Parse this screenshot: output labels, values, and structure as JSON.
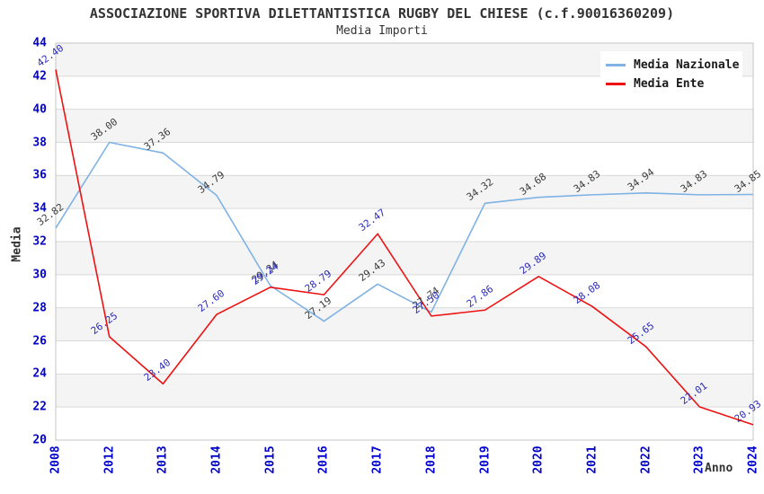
{
  "header": {
    "title": "ASSOCIAZIONE SPORTIVA DILETTANTISTICA RUGBY DEL CHIESE (c.f.90016360209)",
    "subtitle": "Media Importi"
  },
  "legend": {
    "items": [
      {
        "label": "Media Nazionale",
        "color": "#7FB2E5"
      },
      {
        "label": "Media Ente",
        "color": "#EE1111"
      }
    ]
  },
  "axes": {
    "y_title": "Media",
    "x_title": "Anno",
    "y_ticks": [
      44,
      42,
      40,
      38,
      36,
      34,
      32,
      30,
      28,
      26,
      24,
      22,
      20
    ],
    "x_ticks": [
      "2008",
      "2012",
      "2013",
      "2014",
      "2015",
      "2016",
      "2017",
      "2018",
      "2019",
      "2020",
      "2021",
      "2022",
      "2023",
      "2024"
    ]
  },
  "colors": {
    "band_gray": "#f4f4f4",
    "band_white": "#ffffff",
    "gridline": "#d9d9d9",
    "plot_border": "#c4c4c4",
    "tick_text": "#0202cc",
    "nazionale_line": "#7FB2E5",
    "ente_line": "#EE1111",
    "nazionale_label_text": "#3b3b3b",
    "ente_label_text": "#2b2bbd"
  },
  "chart_data": {
    "type": "line",
    "title": "ASSOCIAZIONE SPORTIVA DILETTANTISTICA RUGBY DEL CHIESE (c.f.90016360209)",
    "subtitle": "Media Importi",
    "xlabel": "Anno",
    "ylabel": "Media",
    "ylim": [
      20,
      44
    ],
    "ytick_step": 2,
    "grid": "horizontal gridlines with alternating shaded bands",
    "legend_position": "top-right",
    "categories": [
      "2008",
      "2012",
      "2013",
      "2014",
      "2015",
      "2016",
      "2017",
      "2018",
      "2019",
      "2020",
      "2021",
      "2022",
      "2023",
      "2024"
    ],
    "series": [
      {
        "name": "Media Nazionale",
        "color": "#7FB2E5",
        "label_color": "#3b3b3b",
        "values": [
          32.82,
          38.0,
          37.36,
          34.79,
          29.34,
          27.19,
          29.43,
          27.74,
          34.32,
          34.68,
          34.83,
          34.94,
          34.83,
          34.85
        ]
      },
      {
        "name": "Media Ente",
        "color": "#EE1111",
        "label_color": "#2b2bbd",
        "values": [
          42.4,
          26.25,
          23.4,
          27.6,
          29.24,
          28.79,
          32.47,
          27.5,
          27.86,
          29.89,
          28.08,
          25.65,
          22.01,
          20.93
        ]
      }
    ]
  }
}
